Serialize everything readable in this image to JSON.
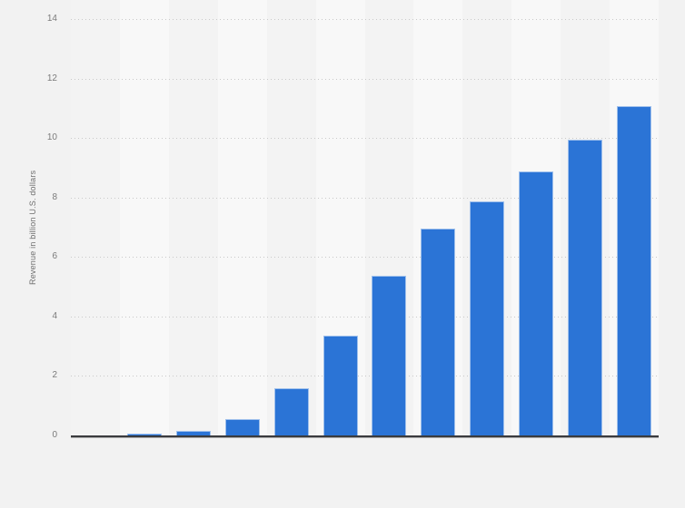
{
  "chart_data": {
    "type": "bar",
    "title": "",
    "ylabel": "Revenue in billion U.S. dollars",
    "xlabel": "",
    "y_ticks": [
      0,
      2,
      4,
      6,
      8,
      10,
      12,
      14
    ],
    "ylim": [
      0,
      14
    ],
    "grid": "horizontal dotted gridlines at each labeled tick, solid dark baseline at 0",
    "legend_position": "none",
    "plot_background": "12 alternating vertical column stripes; first column has no visible bar",
    "x_tick_labels_visible": false,
    "categories": [
      "",
      "",
      "",
      "",
      "",
      "",
      "",
      "",
      "",
      "",
      "",
      ""
    ],
    "values": [
      0,
      0.05,
      0.16,
      0.56,
      1.58,
      3.36,
      5.38,
      6.94,
      7.87,
      8.88,
      9.95,
      11.08
    ],
    "note": "values read from pixel heights; category labels are not rendered in the screenshot"
  },
  "colors": {
    "page_background": "#f2f2f2",
    "stripe_light": "#f8f8f8",
    "stripe_dark": "#f3f3f3",
    "bar_fill": "#2b74d6",
    "bar_edge": "rgba(255,255,255,0.55)",
    "gridline": "#c9c9c9",
    "axis_line": "#3a3b3e",
    "axis_line_shadow": "#ababab",
    "tick_label_text": "#7a7a7a",
    "axis_title_text": "#6f6f6f"
  }
}
